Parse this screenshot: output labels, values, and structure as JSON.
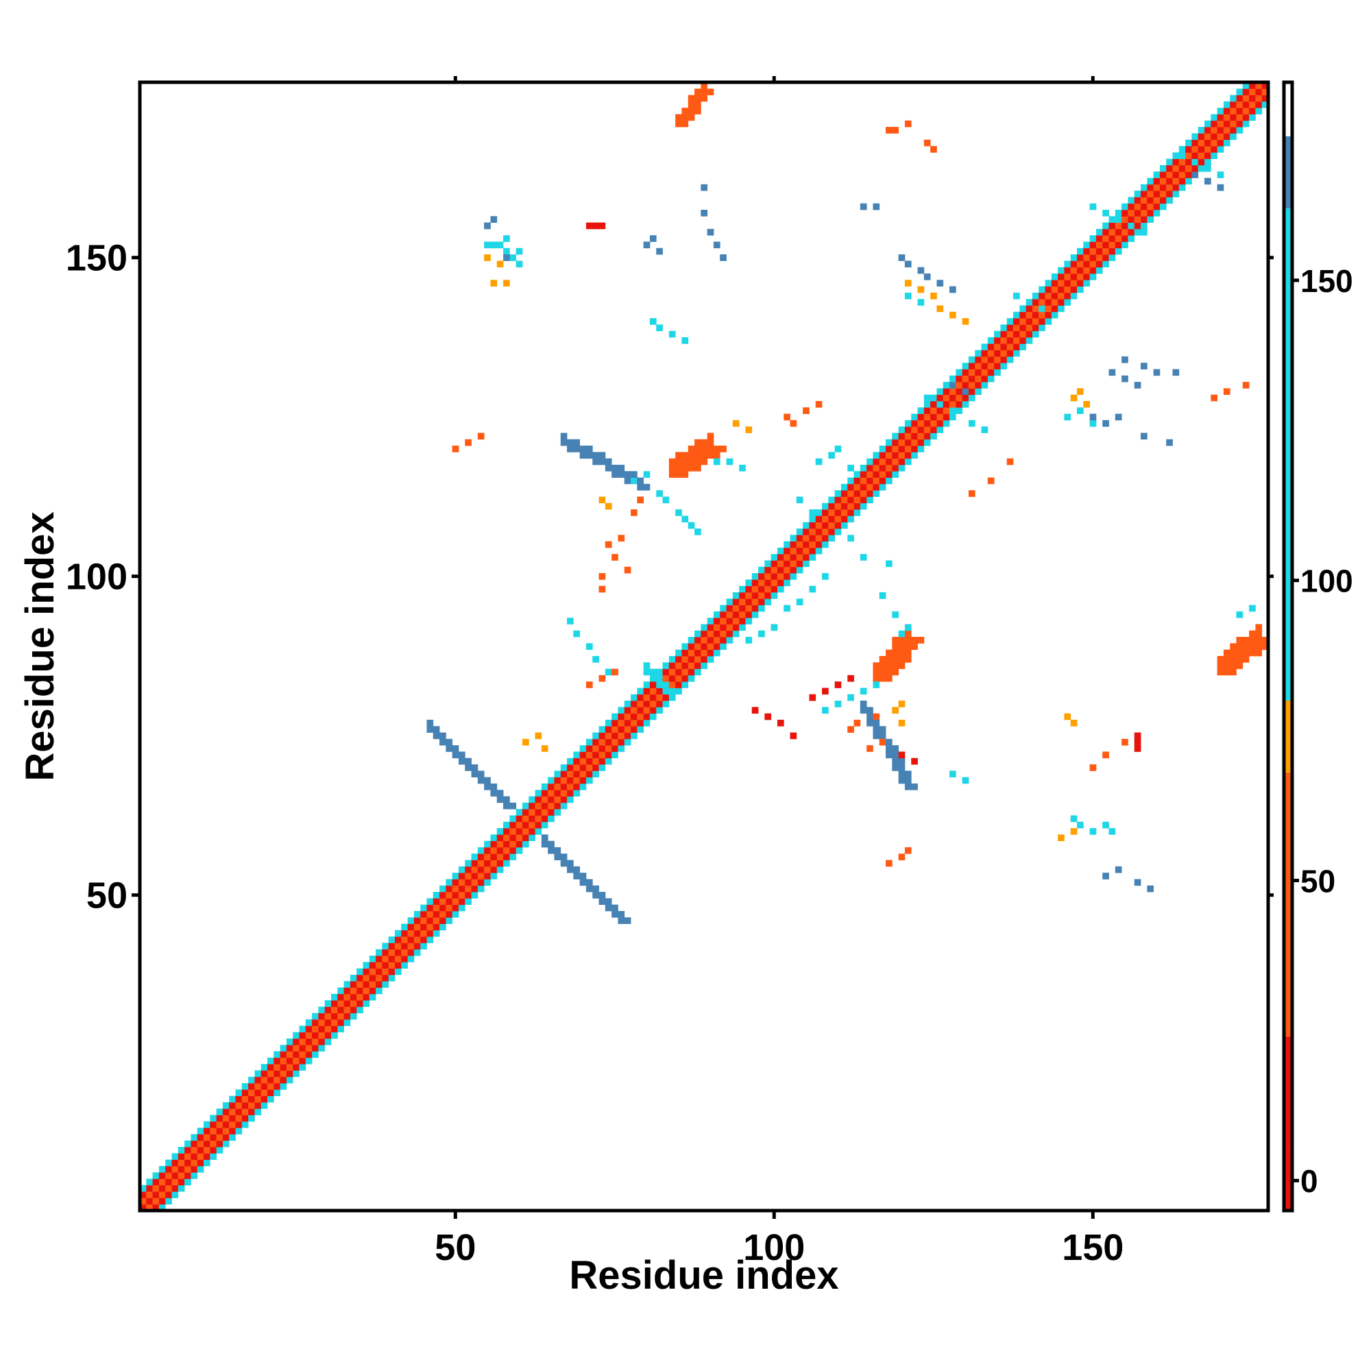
{
  "chart_data": {
    "type": "heatmap",
    "title": "",
    "xlabel": "Residue index",
    "ylabel": "Residue index",
    "xlim": [
      1,
      177
    ],
    "ylim": [
      1,
      177
    ],
    "x_ticks": [
      50,
      100,
      150
    ],
    "y_ticks": [
      50,
      100,
      150
    ],
    "x_tick_labels": [
      "50",
      "100",
      "150"
    ],
    "y_tick_labels": [
      "50",
      "100",
      "150"
    ],
    "grid": false,
    "colorbar": {
      "range": [
        -5,
        174
      ],
      "ticks": [
        0,
        50,
        100,
        150
      ],
      "tick_labels": [
        "0",
        "50",
        "100",
        "150"
      ],
      "bins": [
        {
          "from": -5,
          "to": 5,
          "color": "#e8140c"
        },
        {
          "from": 5,
          "to": 24,
          "color": "#e8140c"
        },
        {
          "from": 24,
          "to": 68,
          "color": "#ff5a14"
        },
        {
          "from": 68,
          "to": 74,
          "color": "#ff9f00"
        },
        {
          "from": 74,
          "to": 80,
          "color": "#ff9f00"
        },
        {
          "from": 80,
          "to": 162,
          "color": "#1ed7e6"
        },
        {
          "from": 162,
          "to": 174,
          "color": "#4682b4"
        }
      ],
      "top_white": [
        174,
        183
      ]
    },
    "classes": {
      "r": {
        "color": "#e8140c",
        "value": 3
      },
      "o": {
        "color": "#ff5a14",
        "value": 35
      },
      "a": {
        "color": "#ff9f00",
        "value": 72
      },
      "c": {
        "color": "#1ed7e6",
        "value": 120
      },
      "b": {
        "color": "#4682b4",
        "value": 168
      }
    },
    "features": [
      {
        "kind": "diag_band",
        "from": 1,
        "to": 177,
        "pattern": [
          [
            "r",
            0
          ],
          [
            "a",
            1
          ],
          [
            "o",
            -1
          ],
          [
            "o",
            2
          ],
          [
            "r",
            -2
          ],
          [
            "a",
            3
          ],
          [
            "c",
            -3
          ]
        ]
      },
      {
        "kind": "strand",
        "start": [
          46,
          76
        ],
        "end": [
          58,
          64
        ],
        "width": 2,
        "value": "b"
      },
      {
        "kind": "strand",
        "start": [
          64,
          58
        ],
        "end": [
          76,
          46
        ],
        "width": 2,
        "value": "b"
      },
      {
        "kind": "strand",
        "start": [
          80,
          85
        ],
        "end": [
          83,
          82
        ],
        "width": 2,
        "value": "c"
      },
      {
        "kind": "strand",
        "start": [
          67,
          121
        ],
        "end": [
          79,
          114
        ],
        "width": 2,
        "value": "b"
      },
      {
        "kind": "strand",
        "start": [
          114,
          79
        ],
        "end": [
          121,
          67
        ],
        "width": 2,
        "value": "b"
      },
      {
        "kind": "strand",
        "start": [
          84,
          116
        ],
        "end": [
          90,
          120
        ],
        "width": 3,
        "value": "o"
      },
      {
        "kind": "strand",
        "start": [
          116,
          84
        ],
        "end": [
          121,
          90
        ],
        "width": 3,
        "value": "o"
      },
      {
        "kind": "strand",
        "start": [
          85,
          171
        ],
        "end": [
          89,
          176
        ],
        "width": 2,
        "value": "o"
      },
      {
        "kind": "strand",
        "start": [
          170,
          85
        ],
        "end": [
          176,
          90
        ],
        "width": 3,
        "value": "o"
      },
      {
        "kind": "points",
        "value": "c",
        "pts": [
          [
            55,
            152
          ],
          [
            56,
            152
          ],
          [
            57,
            152
          ],
          [
            58,
            151
          ],
          [
            59,
            150
          ],
          [
            60,
            149
          ],
          [
            60,
            151
          ],
          [
            58,
            153
          ],
          [
            78,
            115
          ],
          [
            80,
            116
          ],
          [
            82,
            113
          ],
          [
            83,
            112
          ],
          [
            85,
            110
          ],
          [
            86,
            109
          ],
          [
            87,
            108
          ],
          [
            88,
            107
          ],
          [
            91,
            118
          ],
          [
            93,
            118
          ],
          [
            95,
            117
          ],
          [
            107,
            118
          ],
          [
            109,
            119
          ],
          [
            110,
            120
          ],
          [
            112,
            117
          ],
          [
            113,
            116
          ],
          [
            104,
            112
          ],
          [
            106,
            110
          ],
          [
            112,
            106
          ],
          [
            114,
            103
          ],
          [
            120,
            91
          ],
          [
            121,
            92
          ],
          [
            119,
            94
          ],
          [
            117,
            97
          ],
          [
            118,
            102
          ],
          [
            96,
            90
          ],
          [
            98,
            91
          ],
          [
            100,
            92
          ],
          [
            102,
            95
          ],
          [
            104,
            96
          ],
          [
            106,
            98
          ],
          [
            108,
            100
          ],
          [
            108,
            79
          ],
          [
            110,
            80
          ],
          [
            112,
            81
          ],
          [
            114,
            82
          ],
          [
            116,
            83
          ],
          [
            128,
            69
          ],
          [
            130,
            68
          ],
          [
            68,
            93
          ],
          [
            69,
            91
          ],
          [
            71,
            89
          ],
          [
            72,
            87
          ],
          [
            74,
            85
          ],
          [
            147,
            62
          ],
          [
            148,
            61
          ],
          [
            150,
            60
          ],
          [
            152,
            61
          ],
          [
            153,
            60
          ],
          [
            81,
            140
          ],
          [
            82,
            139
          ],
          [
            84,
            138
          ],
          [
            86,
            137
          ],
          [
            124,
            128
          ],
          [
            126,
            127
          ],
          [
            128,
            126
          ],
          [
            131,
            124
          ],
          [
            133,
            123
          ],
          [
            138,
            144
          ],
          [
            140,
            143
          ],
          [
            142,
            142
          ],
          [
            150,
            158
          ],
          [
            152,
            157
          ],
          [
            154,
            156
          ],
          [
            156,
            155
          ],
          [
            158,
            154
          ],
          [
            164,
            166
          ],
          [
            166,
            165
          ],
          [
            168,
            164
          ],
          [
            170,
            163
          ],
          [
            121,
            144
          ],
          [
            123,
            143
          ],
          [
            173,
            94
          ],
          [
            175,
            95
          ],
          [
            146,
            125
          ],
          [
            148,
            126
          ],
          [
            150,
            124
          ],
          [
            152,
            124
          ]
        ]
      },
      {
        "kind": "points",
        "value": "b",
        "pts": [
          [
            55,
            155
          ],
          [
            56,
            156
          ],
          [
            58,
            150
          ],
          [
            80,
            152
          ],
          [
            81,
            153
          ],
          [
            82,
            151
          ],
          [
            89,
            161
          ],
          [
            89,
            157
          ],
          [
            90,
            154
          ],
          [
            91,
            152
          ],
          [
            92,
            150
          ],
          [
            114,
            158
          ],
          [
            116,
            158
          ],
          [
            120,
            150
          ],
          [
            121,
            149
          ],
          [
            123,
            148
          ],
          [
            124,
            147
          ],
          [
            126,
            146
          ],
          [
            128,
            145
          ],
          [
            150,
            125
          ],
          [
            152,
            124
          ],
          [
            154,
            125
          ],
          [
            158,
            122
          ],
          [
            162,
            121
          ],
          [
            155,
            134
          ],
          [
            158,
            133
          ],
          [
            160,
            132
          ],
          [
            163,
            132
          ],
          [
            166,
            163
          ],
          [
            168,
            162
          ],
          [
            170,
            161
          ],
          [
            152,
            53
          ],
          [
            154,
            54
          ],
          [
            157,
            52
          ],
          [
            159,
            51
          ],
          [
            153,
            132
          ],
          [
            155,
            131
          ],
          [
            157,
            130
          ],
          [
            128,
            130
          ],
          [
            130,
            129
          ]
        ]
      },
      {
        "kind": "points",
        "value": "o",
        "pts": [
          [
            50,
            120
          ],
          [
            52,
            121
          ],
          [
            54,
            122
          ],
          [
            73,
            100
          ],
          [
            73,
            98
          ],
          [
            78,
            110
          ],
          [
            79,
            112
          ],
          [
            76,
            106
          ],
          [
            115,
            73
          ],
          [
            117,
            74
          ],
          [
            113,
            77
          ],
          [
            116,
            78
          ],
          [
            112,
            76
          ],
          [
            74,
            105
          ],
          [
            75,
            103
          ],
          [
            77,
            101
          ],
          [
            102,
            125
          ],
          [
            103,
            124
          ],
          [
            105,
            126
          ],
          [
            107,
            127
          ],
          [
            118,
            170
          ],
          [
            119,
            170
          ],
          [
            121,
            171
          ],
          [
            150,
            70
          ],
          [
            152,
            72
          ],
          [
            155,
            74
          ],
          [
            131,
            113
          ],
          [
            134,
            115
          ],
          [
            137,
            118
          ],
          [
            169,
            128
          ],
          [
            171,
            129
          ],
          [
            174,
            130
          ],
          [
            118,
            55
          ],
          [
            120,
            56
          ],
          [
            121,
            57
          ],
          [
            124,
            168
          ],
          [
            125,
            167
          ],
          [
            71,
            83
          ],
          [
            73,
            84
          ],
          [
            75,
            85
          ]
        ]
      },
      {
        "kind": "points",
        "value": "a",
        "pts": [
          [
            55,
            150
          ],
          [
            57,
            149
          ],
          [
            56,
            146
          ],
          [
            58,
            146
          ],
          [
            147,
            128
          ],
          [
            148,
            129
          ],
          [
            149,
            127
          ],
          [
            146,
            78
          ],
          [
            147,
            77
          ],
          [
            126,
            142
          ],
          [
            128,
            141
          ],
          [
            130,
            140
          ],
          [
            94,
            124
          ],
          [
            96,
            123
          ],
          [
            119,
            79
          ],
          [
            120,
            80
          ],
          [
            120,
            77
          ],
          [
            73,
            112
          ],
          [
            74,
            111
          ],
          [
            121,
            146
          ],
          [
            123,
            145
          ],
          [
            125,
            144
          ],
          [
            145,
            59
          ],
          [
            147,
            60
          ],
          [
            61,
            74
          ],
          [
            63,
            75
          ],
          [
            64,
            73
          ]
        ]
      },
      {
        "kind": "points",
        "value": "r",
        "pts": [
          [
            71,
            155
          ],
          [
            72,
            155
          ],
          [
            73,
            155
          ],
          [
            157,
            75
          ],
          [
            157,
            74
          ],
          [
            157,
            73
          ],
          [
            120,
            72
          ],
          [
            122,
            71
          ],
          [
            97,
            79
          ],
          [
            99,
            78
          ],
          [
            101,
            77
          ],
          [
            103,
            75
          ],
          [
            106,
            81
          ],
          [
            108,
            82
          ],
          [
            110,
            83
          ],
          [
            112,
            84
          ]
        ]
      }
    ]
  }
}
